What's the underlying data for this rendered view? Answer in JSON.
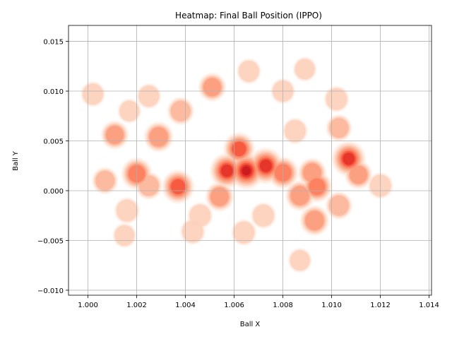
{
  "chart_data": {
    "type": "heatmap",
    "title": "Heatmap: Final Ball Position (IPPO)",
    "xlabel": "Ball X",
    "ylabel": "Ball Y",
    "xlim": [
      0.9992,
      1.0141
    ],
    "ylim": [
      -0.0105,
      0.0166
    ],
    "grid": true,
    "colormap": "Reds",
    "level_colors": [
      "#fff5f0",
      "#fee4d8",
      "#fdd0bb",
      "#fcb69b",
      "#fc9b7c",
      "#fb7d5d",
      "#f5553d",
      "#e32f27",
      "#c8171c"
    ],
    "x_ticks": [
      {
        "value": 1.0,
        "label": "1.000"
      },
      {
        "value": 1.002,
        "label": "1.002"
      },
      {
        "value": 1.004,
        "label": "1.004"
      },
      {
        "value": 1.006,
        "label": "1.006"
      },
      {
        "value": 1.008,
        "label": "1.008"
      },
      {
        "value": 1.01,
        "label": "1.010"
      },
      {
        "value": 1.012,
        "label": "1.012"
      },
      {
        "value": 1.014,
        "label": "1.014"
      }
    ],
    "y_ticks": [
      {
        "value": -0.01,
        "label": "−0.010"
      },
      {
        "value": -0.005,
        "label": "−0.005"
      },
      {
        "value": 0.0,
        "label": "0.000"
      },
      {
        "value": 0.005,
        "label": "0.005"
      },
      {
        "value": 0.01,
        "label": "0.010"
      },
      {
        "value": 0.015,
        "label": "0.015"
      }
    ],
    "density_hotspots": [
      {
        "x": 1.0065,
        "y": 0.002,
        "weight": 1.0
      },
      {
        "x": 1.0073,
        "y": 0.0025,
        "weight": 0.95
      },
      {
        "x": 1.0057,
        "y": 0.002,
        "weight": 0.9
      },
      {
        "x": 1.0107,
        "y": 0.0032,
        "weight": 0.9
      },
      {
        "x": 1.0062,
        "y": 0.0042,
        "weight": 0.75
      },
      {
        "x": 1.0037,
        "y": 0.0004,
        "weight": 0.8
      },
      {
        "x": 1.002,
        "y": 0.0017,
        "weight": 0.7
      },
      {
        "x": 1.0029,
        "y": 0.0054,
        "weight": 0.6
      },
      {
        "x": 1.0093,
        "y": -0.003,
        "weight": 0.6
      },
      {
        "x": 1.0094,
        "y": 0.0004,
        "weight": 0.65
      },
      {
        "x": 1.0087,
        "y": -0.0005,
        "weight": 0.6
      },
      {
        "x": 1.0054,
        "y": -0.0006,
        "weight": 0.55
      },
      {
        "x": 1.008,
        "y": 0.0018,
        "weight": 0.7
      },
      {
        "x": 1.0092,
        "y": 0.0018,
        "weight": 0.55
      },
      {
        "x": 1.0111,
        "y": 0.0016,
        "weight": 0.5
      },
      {
        "x": 1.0051,
        "y": 0.0104,
        "weight": 0.5
      },
      {
        "x": 1.0038,
        "y": 0.008,
        "weight": 0.45
      },
      {
        "x": 1.0011,
        "y": 0.0056,
        "weight": 0.5
      },
      {
        "x": 1.0025,
        "y": 0.0005,
        "weight": 0.45
      },
      {
        "x": 1.0103,
        "y": -0.0015,
        "weight": 0.45
      },
      {
        "x": 1.0072,
        "y": -0.0025,
        "weight": 0.35
      },
      {
        "x": 1.0046,
        "y": -0.0025,
        "weight": 0.35
      },
      {
        "x": 1.0016,
        "y": -0.002,
        "weight": 0.35
      },
      {
        "x": 1.0007,
        "y": 0.001,
        "weight": 0.4
      },
      {
        "x": 1.0102,
        "y": 0.0092,
        "weight": 0.35
      },
      {
        "x": 1.008,
        "y": 0.01,
        "weight": 0.3
      },
      {
        "x": 1.0066,
        "y": 0.012,
        "weight": 0.3
      },
      {
        "x": 1.0043,
        "y": -0.0041,
        "weight": 0.35
      },
      {
        "x": 1.0064,
        "y": -0.0042,
        "weight": 0.35
      },
      {
        "x": 1.0025,
        "y": 0.0095,
        "weight": 0.3
      },
      {
        "x": 1.0002,
        "y": 0.0097,
        "weight": 0.3
      },
      {
        "x": 1.012,
        "y": 0.0005,
        "weight": 0.35
      },
      {
        "x": 1.0087,
        "y": -0.007,
        "weight": 0.25
      },
      {
        "x": 1.0089,
        "y": 0.0122,
        "weight": 0.25
      },
      {
        "x": 1.0017,
        "y": 0.008,
        "weight": 0.25
      },
      {
        "x": 1.0015,
        "y": -0.0045,
        "weight": 0.25
      },
      {
        "x": 1.0103,
        "y": 0.0063,
        "weight": 0.4
      },
      {
        "x": 1.0085,
        "y": 0.006,
        "weight": 0.35
      }
    ]
  }
}
